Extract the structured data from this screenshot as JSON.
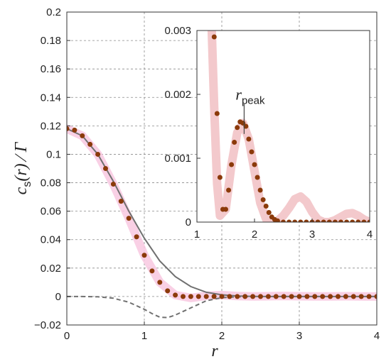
{
  "chart_data": [
    {
      "id": "main",
      "type": "line",
      "xlim": [
        0,
        4
      ],
      "ylim": [
        -0.02,
        0.2
      ],
      "xticks": [
        0,
        1,
        2,
        3,
        4
      ],
      "yticks": [
        -0.02,
        0,
        0.02,
        0.04,
        0.06,
        0.08,
        0.1,
        0.12,
        0.14,
        0.16,
        0.18,
        0.2
      ],
      "xtick_labels": [
        "0",
        "1",
        "2",
        "3",
        "4"
      ],
      "ytick_labels": [
        "−0.02",
        "0",
        "0.02",
        "0.04",
        "0.06",
        "0.08",
        "0.1",
        "0.12",
        "0.14",
        "0.16",
        "0.18",
        "0.2"
      ],
      "grid": true,
      "xlabel": "r",
      "ylabel": {
        "c": "c",
        "sub": "s",
        "arg": "(r)",
        "sep": " ∕ ",
        "gamma": "Γ"
      },
      "series": [
        {
          "style": "thick-pink",
          "color": "#f8c8e0",
          "x": [
            0,
            0.2,
            0.4,
            0.6,
            0.8,
            1.0,
            1.2,
            1.4,
            1.6,
            1.8,
            2.0,
            2.2,
            2.4,
            2.6,
            2.8,
            3.0,
            3.2,
            3.4,
            3.6,
            3.8,
            4.0
          ],
          "y": [
            0.118,
            0.113,
            0.1,
            0.079,
            0.055,
            0.029,
            0.01,
            0.001,
            -0.001,
            0.0005,
            0.001,
            0.0003,
            0.0001,
            0.0002,
            0.0004,
            0.0002,
            0.0001,
            0.0001,
            0.0002,
            0.0001,
            0.0
          ]
        },
        {
          "style": "solid",
          "color": "#707070",
          "x": [
            0,
            0.2,
            0.4,
            0.6,
            0.8,
            1.0,
            1.2,
            1.4,
            1.6,
            1.8,
            2.0,
            2.2,
            2.4,
            2.6,
            2.8,
            3.0,
            3.5,
            4.0
          ],
          "y": [
            0.118,
            0.113,
            0.1,
            0.081,
            0.06,
            0.041,
            0.025,
            0.014,
            0.007,
            0.003,
            0.0012,
            0.0004,
            0.0001,
            0.0,
            0.0,
            0.0,
            0.0,
            0.0
          ]
        },
        {
          "style": "dashed",
          "color": "#707070",
          "x": [
            0,
            0.2,
            0.4,
            0.6,
            0.8,
            1.0,
            1.1,
            1.2,
            1.3,
            1.4,
            1.6,
            1.8,
            2.0,
            2.2,
            2.4,
            2.6,
            3.0,
            4.0
          ],
          "y": [
            0.0,
            0.0,
            -0.0002,
            -0.0012,
            -0.004,
            -0.009,
            -0.012,
            -0.0145,
            -0.0148,
            -0.013,
            -0.008,
            -0.003,
            -0.0008,
            -0.0002,
            0.0,
            0.0,
            0.0,
            0.0
          ]
        },
        {
          "style": "dots",
          "color": "#8b3a0a",
          "x": [
            0.0,
            0.1,
            0.2,
            0.3,
            0.4,
            0.5,
            0.6,
            0.7,
            0.8,
            0.9,
            1.0,
            1.1,
            1.2,
            1.3,
            1.4,
            1.5,
            1.6,
            1.7,
            1.8,
            1.9,
            2.0,
            2.1,
            2.2,
            2.3,
            2.4,
            2.5,
            2.6,
            2.7,
            2.8,
            2.9,
            3.0,
            3.1,
            3.2,
            3.3,
            3.4,
            3.5,
            3.6,
            3.7,
            3.8,
            3.9,
            4.0
          ],
          "y": [
            0.118,
            0.117,
            0.113,
            0.107,
            0.1,
            0.09,
            0.079,
            0.067,
            0.055,
            0.042,
            0.029,
            0.018,
            0.01,
            0.004,
            0.001,
            0.0,
            0.0,
            0.0,
            0.0,
            0.0,
            0.0,
            0.0,
            0.0,
            0.0,
            0.0,
            0.0,
            0.0,
            0.0,
            0.0,
            0.0,
            0.0,
            0.0,
            0.0,
            0.0,
            0.0,
            0.0,
            0.0,
            0.0,
            0.0,
            0.0,
            0.0
          ]
        }
      ]
    },
    {
      "id": "inset",
      "type": "line",
      "xlim": [
        1,
        4
      ],
      "ylim": [
        0,
        0.003
      ],
      "xticks": [
        1,
        2,
        3,
        4
      ],
      "yticks": [
        0,
        0.001,
        0.002,
        0.003
      ],
      "xtick_labels": [
        "1",
        "2",
        "3",
        "4"
      ],
      "ytick_labels": [
        "0",
        "0.001",
        "0.002",
        "0.003"
      ],
      "grid": false,
      "annotation": {
        "text": "r",
        "sub": "peak",
        "x": 1.82,
        "y_top": 0.00185,
        "y_bottom": 0.00138
      },
      "series": [
        {
          "style": "thick-pink",
          "color": "#f3c9cc",
          "x": [
            1.18,
            1.25,
            1.3,
            1.35,
            1.4,
            1.5,
            1.6,
            1.7,
            1.8,
            1.9,
            2.0,
            2.1,
            2.2,
            2.3,
            2.4,
            2.5,
            2.6,
            2.7,
            2.8,
            2.9,
            3.0,
            3.1,
            3.2,
            3.3,
            3.4,
            3.5,
            3.6,
            3.7,
            3.8,
            3.9,
            4.0
          ],
          "y": [
            0.0042,
            0.0032,
            0.0018,
            0.0006,
            0.0001,
            0.0002,
            0.0009,
            0.0014,
            0.00155,
            0.0013,
            0.0008,
            0.0003,
            5e-05,
            0.0,
            2e-05,
            0.0001,
            0.00022,
            0.00036,
            0.0004,
            0.00032,
            0.00016,
            4e-05,
            0.0,
            0.0,
            3e-05,
            8e-05,
            0.00013,
            0.00014,
            0.0001,
            4e-05,
            0.0
          ]
        },
        {
          "style": "dots",
          "color": "#8b3a0a",
          "x": [
            1.3,
            1.35,
            1.4,
            1.45,
            1.5,
            1.55,
            1.6,
            1.65,
            1.7,
            1.75,
            1.8,
            1.85,
            1.9,
            1.95,
            2.0,
            2.05,
            2.1,
            2.15,
            2.2,
            2.25,
            2.3,
            2.35,
            2.4,
            2.5,
            2.6,
            2.7,
            2.8,
            2.9,
            3.0,
            3.1,
            3.2,
            3.3,
            3.4,
            3.5,
            3.6,
            3.7,
            3.8,
            3.9,
            4.0
          ],
          "y": [
            0.0029,
            0.0017,
            0.0007,
            0.0002,
            0.0002,
            0.0005,
            0.0009,
            0.00125,
            0.00148,
            0.00157,
            0.00155,
            0.0015,
            0.0013,
            0.0011,
            0.0009,
            0.0007,
            0.0005,
            0.00035,
            0.00025,
            0.00015,
            8e-05,
            4e-05,
            2e-05,
            0.0,
            0.0,
            0.0,
            0.0,
            0.0,
            0.0,
            0.0,
            0.0,
            0.0,
            0.0,
            0.0,
            0.0,
            0.0,
            0.0,
            0.0,
            0.0
          ]
        }
      ]
    }
  ]
}
